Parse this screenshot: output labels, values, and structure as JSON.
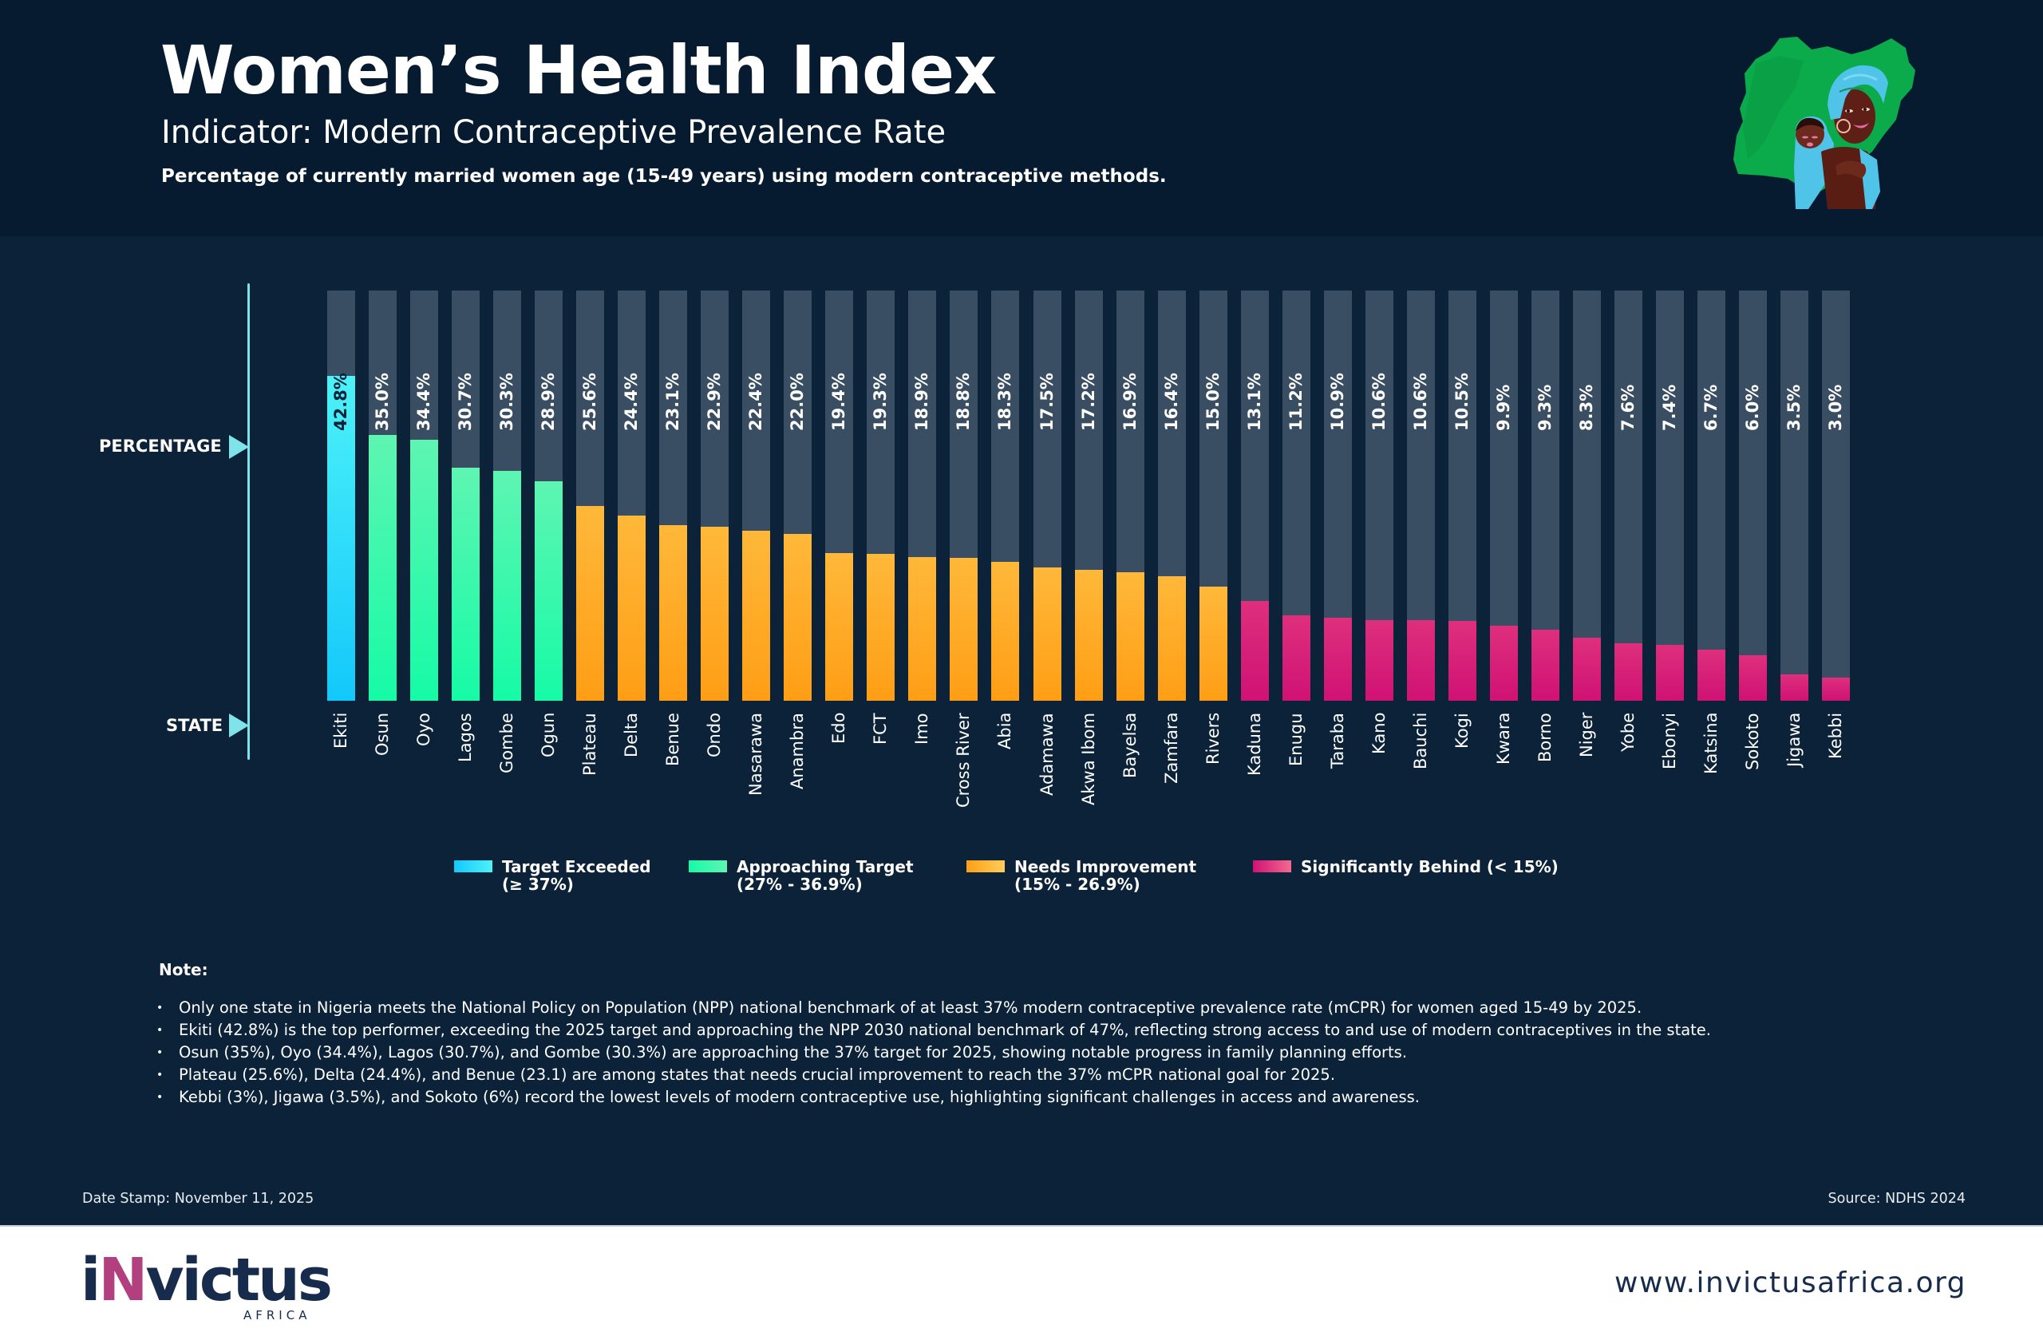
{
  "header": {
    "title": "Women’s Health Index",
    "subtitle": "Indicator: Modern Contraceptive Prevalence Rate",
    "description": "Percentage of currently married women age (15-49 years) using modern contraceptive methods.",
    "illustration": "nigeria-map-mother-child-illustration"
  },
  "axis": {
    "value_label": "PERCENTAGE",
    "category_label": "STATE"
  },
  "colors": {
    "track": "#3a4e63",
    "target_exceeded": [
      "#4df2f8",
      "#13c8fb"
    ],
    "approaching_target": [
      "#5ef5b2",
      "#16fba6"
    ],
    "needs_improvement": [
      "#ffb83a",
      "#ff9e15"
    ],
    "significantly_behind": [
      "#de2f7d",
      "#cf1274"
    ]
  },
  "chart_data": {
    "type": "bar",
    "title": "Women’s Health Index",
    "subtitle": "Indicator: Modern Contraceptive Prevalence Rate",
    "xlabel": "STATE",
    "ylabel": "PERCENTAGE",
    "ylim": [
      0,
      54
    ],
    "grid": false,
    "value_format": "percent, 1 decimal",
    "categories": [
      "Ekiti",
      "Osun",
      "Oyo",
      "Lagos",
      "Gombe",
      "Ogun",
      "Plateau",
      "Delta",
      "Benue",
      "Ondo",
      "Nasarawa",
      "Anambra",
      "Edo",
      "FCT",
      "Imo",
      "Cross River",
      "Abia",
      "Adamawa",
      "Akwa Ibom",
      "Bayelsa",
      "Zamfara",
      "Rivers",
      "Kaduna",
      "Enugu",
      "Taraba",
      "Kano",
      "Bauchi",
      "Kogi",
      "Kwara",
      "Borno",
      "Niger",
      "Yobe",
      "Ebonyi",
      "Katsina",
      "Sokoto",
      "Jigawa",
      "Kebbi"
    ],
    "values": [
      42.8,
      35.0,
      34.4,
      30.7,
      30.3,
      28.9,
      25.6,
      24.4,
      23.1,
      22.9,
      22.4,
      22.0,
      19.4,
      19.3,
      18.9,
      18.8,
      18.3,
      17.5,
      17.2,
      16.9,
      16.4,
      15.0,
      13.1,
      11.2,
      10.9,
      10.6,
      10.6,
      10.5,
      9.9,
      9.3,
      8.3,
      7.6,
      7.4,
      6.7,
      6.0,
      3.5,
      3.0
    ],
    "labels": [
      "42.8%",
      "35.0%",
      "34.4%",
      "30.7%",
      "30.3%",
      "28.9%",
      "25.6%",
      "24.4%",
      "23.1%",
      "22.9%",
      "22.4%",
      "22.0%",
      "19.4%",
      "19.3%",
      "18.9%",
      "18.8%",
      "18.3%",
      "17.5%",
      "17.2%",
      "16.9%",
      "16.4%",
      "15.0%",
      "13.1%",
      "11.2%",
      "10.9%",
      "10.6%",
      "10.6%",
      "10.5%",
      "9.9%",
      "9.3%",
      "8.3%",
      "7.6%",
      "7.4%",
      "6.7%",
      "6.0%",
      "3.5%",
      "3.0%"
    ],
    "legend_position": "bottom-center",
    "legend": [
      {
        "key": "target_exceeded",
        "label": "Target Exceeded",
        "range": "(≥ 37%)"
      },
      {
        "key": "approaching_target",
        "label": "Approaching Target",
        "range": "(27% - 36.9%)"
      },
      {
        "key": "needs_improvement",
        "label": "Needs Improvement",
        "range": "(15% - 26.9%)"
      },
      {
        "key": "significantly_behind",
        "label": "Significantly Behind (< 15%)",
        "range": ""
      }
    ]
  },
  "notes": {
    "heading": "Note:",
    "items": [
      "Only one state in Nigeria meets the National Policy on Population (NPP) national benchmark of at least 37% modern contraceptive prevalence rate (mCPR) for women aged 15-49 by 2025.",
      "Ekiti (42.8%) is the top performer, exceeding the 2025 target and approaching the NPP 2030 national benchmark of 47%, reflecting strong access to and use of modern contraceptives in the state.",
      "Osun (35%), Oyo (34.4%), Lagos (30.7%), and Gombe (30.3%) are approaching the 37% target for 2025, showing notable progress in family planning efforts.",
      "Plateau (25.6%), Delta (24.4%), and Benue (23.1) are among states that needs crucial improvement to reach the 37% mCPR national goal for 2025.",
      "Kebbi (3%), Jigawa (3.5%), and Sokoto (6%) record the lowest levels of modern contraceptive use, highlighting significant challenges in access and awareness."
    ]
  },
  "meta_footer": {
    "date_stamp": "Date Stamp: November 11, 2025",
    "source": "Source: NDHS 2024"
  },
  "footer": {
    "logo_prefix": "i",
    "logo_accent": "N",
    "logo_rest": "victus",
    "logo_sub": "AFRICA",
    "website": "www.invictusafrica.org"
  }
}
